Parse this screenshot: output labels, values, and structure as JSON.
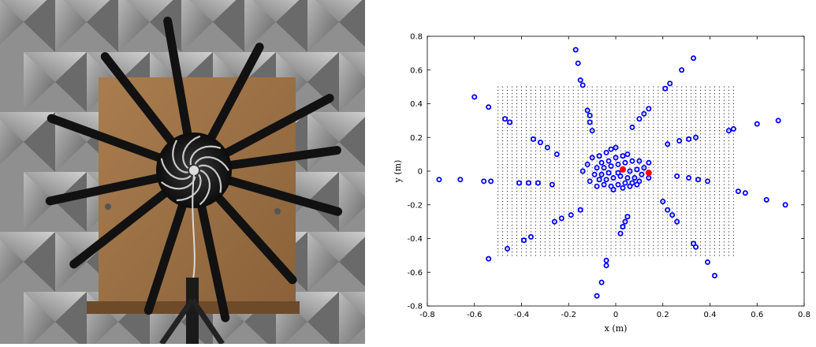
{
  "photo": {
    "subject": "spiral-arm-microphone-array",
    "colors": {
      "foam": "#8d8d8d",
      "board": "#9b7246",
      "arms": "#111111",
      "hub": "#1a1a1a"
    }
  },
  "chart_data": {
    "type": "scatter",
    "xlabel": "x (m)",
    "ylabel": "y (m)",
    "xlim": [
      -0.8,
      0.8
    ],
    "ylim": [
      -0.8,
      0.8
    ],
    "xticks": [
      "-0.8",
      "-0.6",
      "-0.4",
      "-0.2",
      "0",
      "0.2",
      "0.4",
      "0.6",
      "0.8"
    ],
    "yticks": [
      "-0.8",
      "-0.6",
      "-0.4",
      "-0.2",
      "0",
      "0.2",
      "0.4",
      "0.6",
      "0.8"
    ],
    "grid": false,
    "background_grid": {
      "x_range": [
        -0.5,
        0.5
      ],
      "y_range": [
        -0.5,
        0.5
      ],
      "step": 0.02,
      "color": "#000000"
    },
    "series": [
      {
        "marker": "open-circle",
        "color": "#0000ff",
        "points": [
          [
            -0.17,
            0.72
          ],
          [
            -0.16,
            0.64
          ],
          [
            -0.15,
            0.54
          ],
          [
            -0.14,
            0.51
          ],
          [
            -0.12,
            0.36
          ],
          [
            -0.11,
            0.33
          ],
          [
            -0.11,
            0.29
          ],
          [
            -0.1,
            0.24
          ],
          [
            0.33,
            0.67
          ],
          [
            0.28,
            0.6
          ],
          [
            0.23,
            0.52
          ],
          [
            0.21,
            0.49
          ],
          [
            0.14,
            0.37
          ],
          [
            0.12,
            0.34
          ],
          [
            0.1,
            0.31
          ],
          [
            0.07,
            0.26
          ],
          [
            0.69,
            0.3
          ],
          [
            0.6,
            0.28
          ],
          [
            0.5,
            0.25
          ],
          [
            0.48,
            0.24
          ],
          [
            0.34,
            0.2
          ],
          [
            0.31,
            0.19
          ],
          [
            0.27,
            0.18
          ],
          [
            0.22,
            0.16
          ],
          [
            0.72,
            -0.2
          ],
          [
            0.64,
            -0.17
          ],
          [
            0.55,
            -0.13
          ],
          [
            0.52,
            -0.12
          ],
          [
            0.39,
            -0.06
          ],
          [
            0.35,
            -0.05
          ],
          [
            0.31,
            -0.04
          ],
          [
            0.26,
            -0.03
          ],
          [
            0.42,
            -0.62
          ],
          [
            0.39,
            -0.54
          ],
          [
            0.34,
            -0.45
          ],
          [
            0.33,
            -0.43
          ],
          [
            0.26,
            -0.3
          ],
          [
            0.24,
            -0.26
          ],
          [
            0.22,
            -0.23
          ],
          [
            0.2,
            -0.18
          ],
          [
            -0.08,
            -0.74
          ],
          [
            -0.06,
            -0.66
          ],
          [
            -0.04,
            -0.56
          ],
          [
            -0.04,
            -0.53
          ],
          [
            0.02,
            -0.37
          ],
          [
            0.03,
            -0.33
          ],
          [
            0.04,
            -0.3
          ],
          [
            0.05,
            -0.27
          ],
          [
            -0.54,
            -0.52
          ],
          [
            -0.46,
            -0.46
          ],
          [
            -0.39,
            -0.41
          ],
          [
            -0.36,
            -0.39
          ],
          [
            -0.26,
            -0.3
          ],
          [
            -0.23,
            -0.28
          ],
          [
            -0.19,
            -0.26
          ],
          [
            -0.15,
            -0.23
          ],
          [
            -0.75,
            -0.05
          ],
          [
            -0.66,
            -0.05
          ],
          [
            -0.56,
            -0.06
          ],
          [
            -0.53,
            -0.06
          ],
          [
            -0.41,
            -0.07
          ],
          [
            -0.37,
            -0.07
          ],
          [
            -0.33,
            -0.07
          ],
          [
            -0.27,
            -0.08
          ],
          [
            -0.6,
            0.44
          ],
          [
            -0.54,
            0.38
          ],
          [
            -0.47,
            0.31
          ],
          [
            -0.45,
            0.29
          ],
          [
            -0.35,
            0.19
          ],
          [
            -0.32,
            0.17
          ],
          [
            -0.29,
            0.14
          ],
          [
            -0.25,
            0.1
          ],
          [
            -0.1,
            0.08
          ],
          [
            -0.07,
            0.09
          ],
          [
            -0.04,
            0.11
          ],
          [
            -0.02,
            0.13
          ],
          [
            0.0,
            0.14
          ],
          [
            -0.06,
            0.05
          ],
          [
            -0.03,
            0.06
          ],
          [
            0.0,
            0.08
          ],
          [
            0.03,
            0.09
          ],
          [
            0.05,
            0.1
          ],
          [
            -0.08,
            0.02
          ],
          [
            -0.05,
            0.02
          ],
          [
            -0.02,
            0.03
          ],
          [
            0.01,
            0.04
          ],
          [
            0.04,
            0.05
          ],
          [
            0.07,
            0.06
          ],
          [
            0.1,
            0.06
          ],
          [
            0.14,
            0.05
          ],
          [
            -0.09,
            -0.02
          ],
          [
            -0.06,
            -0.02
          ],
          [
            -0.03,
            -0.01
          ],
          [
            0.01,
            -0.01
          ],
          [
            0.06,
            0.0
          ],
          [
            0.09,
            0.01
          ],
          [
            0.12,
            0.02
          ],
          [
            -0.07,
            -0.05
          ],
          [
            -0.04,
            -0.05
          ],
          [
            -0.01,
            -0.04
          ],
          [
            0.02,
            -0.03
          ],
          [
            0.05,
            -0.04
          ],
          [
            0.08,
            -0.04
          ],
          [
            0.11,
            -0.02
          ],
          [
            -0.05,
            -0.08
          ],
          [
            -0.02,
            -0.09
          ],
          [
            0.01,
            -0.08
          ],
          [
            0.04,
            -0.07
          ],
          [
            0.07,
            -0.07
          ],
          [
            0.1,
            -0.06
          ],
          [
            0.14,
            -0.04
          ],
          [
            -0.01,
            -0.11
          ],
          [
            0.03,
            -0.1
          ],
          [
            0.06,
            -0.09
          ],
          [
            0.09,
            -0.08
          ],
          [
            -0.14,
            0.0
          ],
          [
            -0.12,
            0.04
          ],
          [
            -0.11,
            -0.06
          ],
          [
            -0.08,
            -0.09
          ]
        ]
      },
      {
        "marker": "filled-circle",
        "color": "#ff0000",
        "points": [
          [
            0.03,
            0.01
          ],
          [
            0.14,
            -0.01
          ]
        ]
      }
    ]
  }
}
